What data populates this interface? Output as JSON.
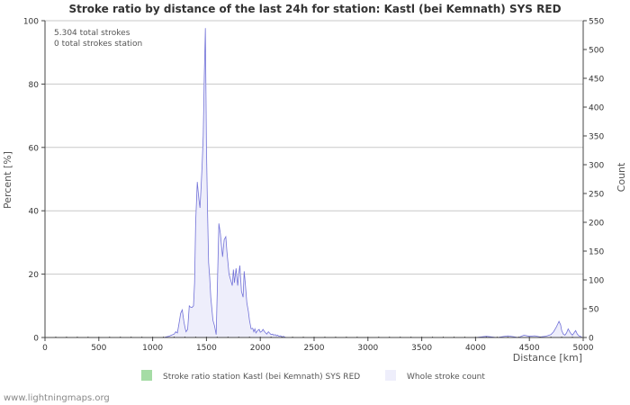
{
  "chart_data": {
    "type": "area",
    "title": "Stroke ratio by distance of the last 24h for station: Kastl (bei Kemnath) SYS RED",
    "xlabel": "Distance   [km]",
    "ylabel_left": "Percent   [%]",
    "ylabel_right": "Count",
    "xlim": [
      0,
      5000
    ],
    "ylim_left": [
      0,
      100
    ],
    "ylim_right": [
      0,
      550
    ],
    "x_ticks": [
      0,
      500,
      1000,
      1500,
      2000,
      2500,
      3000,
      3500,
      4000,
      4500,
      5000
    ],
    "y_left_ticks": [
      0,
      20,
      40,
      60,
      80,
      100
    ],
    "y_right_ticks": [
      0,
      50,
      100,
      150,
      200,
      250,
      300,
      350,
      400,
      450,
      500,
      550
    ],
    "annotations": [
      "5.304 total strokes",
      "0 total strokes station"
    ],
    "series": [
      {
        "name": "Stroke ratio station Kastl (bei Kemnath) SYS RED",
        "color": "#a5dca5",
        "axis": "left",
        "x": [],
        "y": []
      },
      {
        "name": "Whole stroke count",
        "color": "#eeeefb",
        "line_color": "#7272d8",
        "axis": "right",
        "x": [
          1000,
          1050,
          1100,
          1150,
          1175,
          1200,
          1215,
          1230,
          1250,
          1260,
          1275,
          1290,
          1300,
          1310,
          1325,
          1340,
          1350,
          1365,
          1380,
          1390,
          1400,
          1415,
          1430,
          1440,
          1450,
          1460,
          1470,
          1480,
          1490,
          1500,
          1510,
          1520,
          1530,
          1540,
          1550,
          1560,
          1575,
          1590,
          1600,
          1615,
          1630,
          1640,
          1650,
          1665,
          1680,
          1690,
          1700,
          1710,
          1725,
          1740,
          1750,
          1760,
          1775,
          1790,
          1800,
          1810,
          1825,
          1840,
          1850,
          1860,
          1875,
          1890,
          1900,
          1915,
          1930,
          1940,
          1950,
          1960,
          1975,
          1990,
          2000,
          2015,
          2025,
          2040,
          2050,
          2060,
          2075,
          2090,
          2100,
          2115,
          2125,
          2140,
          2150,
          2160,
          2175,
          2190,
          2200,
          2215,
          2225,
          2240,
          2250,
          2275,
          2300,
          2325,
          2350,
          2375,
          2400,
          2450,
          2500,
          2600,
          2700,
          2800,
          3000,
          3200,
          3400,
          3600,
          3800,
          4000,
          4100,
          4200,
          4300,
          4400,
          4450,
          4500,
          4550,
          4600,
          4650,
          4700,
          4725,
          4750,
          4775,
          4790,
          4800,
          4815,
          4830,
          4845,
          4860,
          4875,
          4890,
          4900,
          4915,
          4930,
          4945,
          4960,
          4975,
          4990,
          5000
        ],
        "y": [
          0,
          0,
          0,
          2,
          4,
          6,
          10,
          8,
          30,
          42,
          48,
          28,
          18,
          10,
          14,
          55,
          53,
          52,
          55,
          95,
          200,
          270,
          240,
          225,
          260,
          300,
          350,
          455,
          537,
          330,
          220,
          130,
          105,
          70,
          50,
          30,
          20,
          5,
          80,
          198,
          180,
          160,
          140,
          170,
          175,
          150,
          130,
          110,
          100,
          90,
          118,
          95,
          120,
          90,
          110,
          125,
          80,
          70,
          115,
          95,
          60,
          45,
          30,
          15,
          16,
          10,
          15,
          8,
          12,
          14,
          9,
          11,
          14,
          10,
          8,
          6,
          10,
          7,
          5,
          6,
          4,
          5,
          3,
          4,
          2,
          3,
          1,
          2,
          1,
          0,
          0,
          0,
          0,
          0,
          0,
          0,
          0,
          0,
          0,
          0,
          0,
          0,
          0,
          0,
          0,
          0,
          0,
          0,
          2,
          0,
          3,
          0,
          4,
          2,
          3,
          1,
          2,
          5,
          10,
          18,
          28,
          22,
          12,
          6,
          4,
          8,
          15,
          10,
          6,
          4,
          8,
          12,
          6,
          3,
          2,
          0,
          0
        ]
      }
    ]
  },
  "legend": {
    "station_label": "Stroke ratio station Kastl (bei Kemnath) SYS RED",
    "whole_label": "Whole stroke count"
  },
  "footer": "www.lightningmaps.org"
}
